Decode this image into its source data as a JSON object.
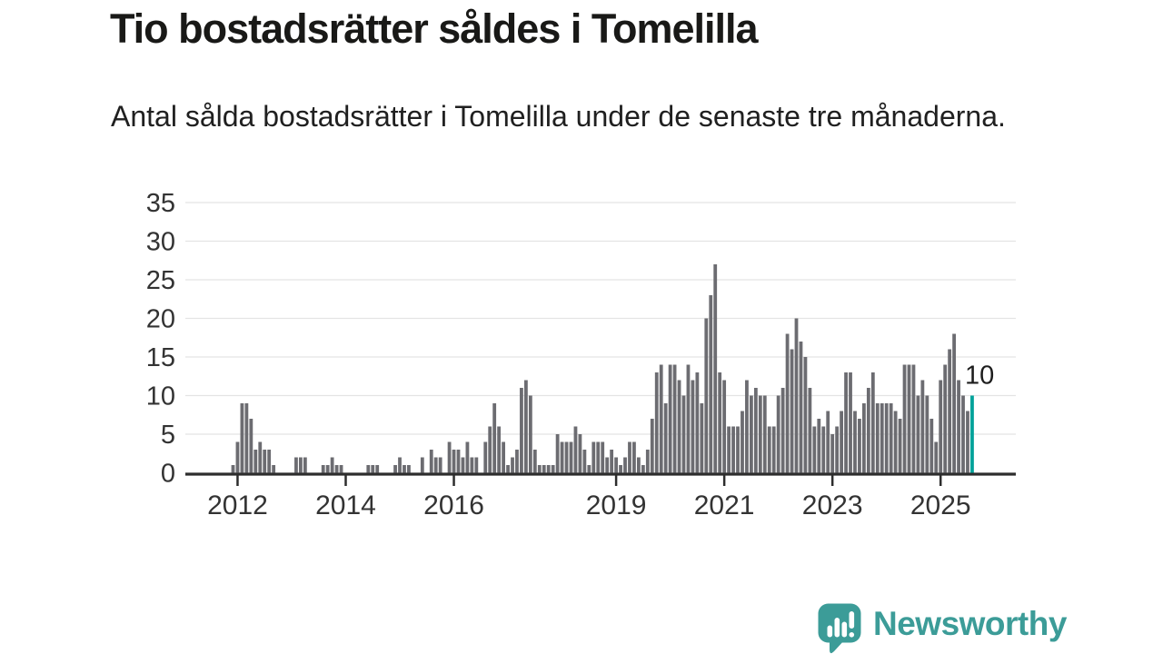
{
  "header": {
    "title": "Tio bostadsrätter såldes i Tomelilla",
    "subtitle": "Antal sålda bostadsrätter i Tomelilla under de senaste tre månaderna."
  },
  "chart_data": {
    "type": "bar",
    "title": "Tio bostadsrätter såldes i Tomelilla",
    "subtitle": "Antal sålda bostadsrätter i Tomelilla under de senaste tre månaderna.",
    "start_month": "2011-12",
    "frequency": "monthly",
    "values": [
      1,
      4,
      9,
      9,
      7,
      3,
      4,
      3,
      3,
      1,
      0,
      0,
      0,
      0,
      2,
      2,
      2,
      0,
      0,
      0,
      1,
      1,
      2,
      1,
      1,
      0,
      0,
      0,
      0,
      0,
      1,
      1,
      1,
      0,
      0,
      0,
      1,
      2,
      1,
      1,
      0,
      0,
      2,
      0,
      3,
      2,
      2,
      0,
      4,
      3,
      3,
      2,
      4,
      2,
      2,
      0,
      4,
      6,
      9,
      6,
      4,
      1,
      2,
      3,
      11,
      12,
      10,
      3,
      1,
      1,
      1,
      1,
      5,
      4,
      4,
      4,
      6,
      5,
      3,
      1,
      4,
      4,
      4,
      2,
      3,
      2,
      1,
      2,
      4,
      4,
      2,
      1,
      3,
      7,
      13,
      14,
      9,
      14,
      14,
      12,
      10,
      14,
      12,
      13,
      9,
      20,
      23,
      27,
      13,
      12,
      6,
      6,
      6,
      8,
      12,
      10,
      11,
      10,
      10,
      6,
      6,
      10,
      11,
      18,
      16,
      20,
      17,
      15,
      11,
      6,
      7,
      6,
      8,
      5,
      6,
      8,
      13,
      13,
      8,
      7,
      9,
      11,
      13,
      9,
      9,
      9,
      9,
      8,
      7,
      14,
      14,
      14,
      10,
      12,
      10,
      7,
      4,
      12,
      14,
      16,
      18,
      12,
      10,
      8,
      10
    ],
    "ylim": [
      0,
      35
    ],
    "yticks": [
      0,
      5,
      10,
      15,
      20,
      25,
      30,
      35
    ],
    "xticks": [
      {
        "label": "2012",
        "month_index": 1
      },
      {
        "label": "2014",
        "month_index": 25
      },
      {
        "label": "2016",
        "month_index": 49
      },
      {
        "label": "2019",
        "month_index": 85
      },
      {
        "label": "2021",
        "month_index": 109
      },
      {
        "label": "2023",
        "month_index": 133
      },
      {
        "label": "2025",
        "month_index": 157
      }
    ],
    "grid": true,
    "legend": "none",
    "highlight_last_bar": true,
    "annotation": {
      "label": "10",
      "month_index": 164
    },
    "colors": {
      "bar": "#6c6c71",
      "highlight": "#00a29a",
      "gridline": "#e4e4e4",
      "axis": "#2d2d2d",
      "tick_label": "#333333",
      "annotation": "#1d1d1d"
    }
  },
  "footer": {
    "brand": "Newsworthy",
    "brand_color": "#3c9c98",
    "logo_icon": "bar-chart-speech-bubble-icon"
  }
}
